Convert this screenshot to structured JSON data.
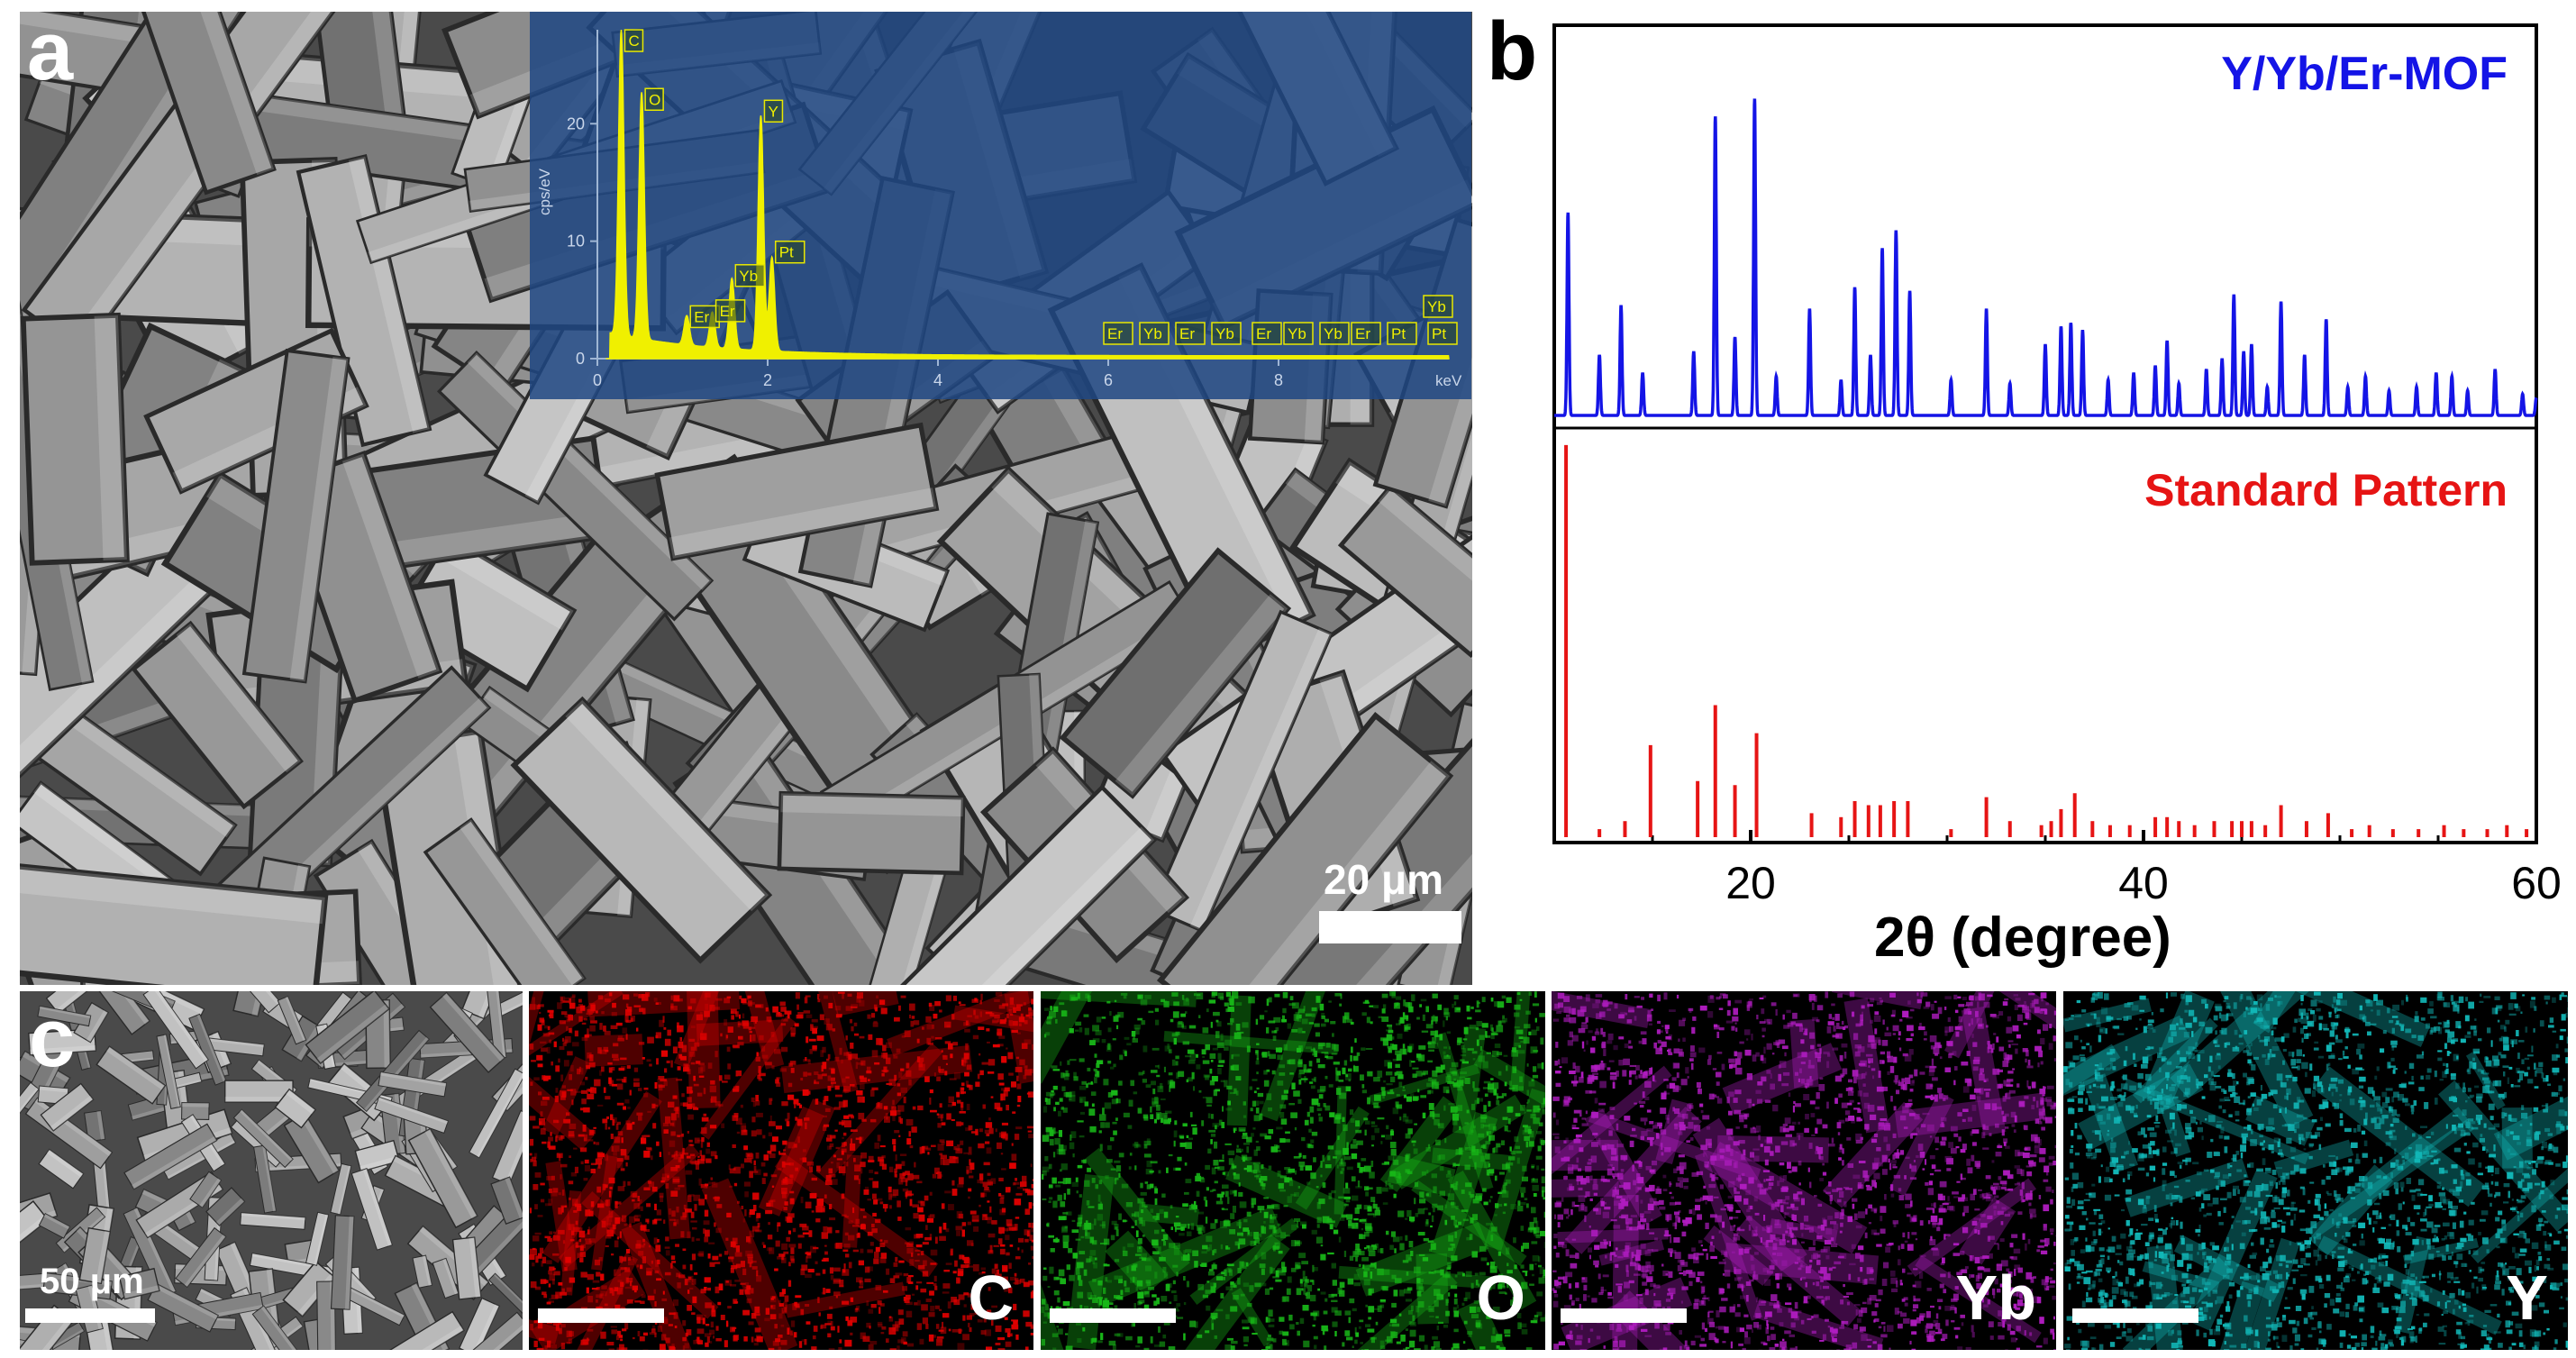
{
  "panel_labels": {
    "a": "a",
    "b": "b",
    "c": "c"
  },
  "sem_a": {
    "scale_bar": "20 μm"
  },
  "eds_inset": {
    "y_axis_label": "cps/eV",
    "y_ticks": [
      "0",
      "10",
      "20"
    ],
    "x_ticks": [
      "0",
      "2",
      "4",
      "6",
      "8"
    ],
    "x_unit": "keV",
    "trace_color": "#f0f000",
    "peaks": [
      {
        "kev": 0.28,
        "height": 26,
        "label": "C"
      },
      {
        "kev": 0.52,
        "height": 21,
        "label": "O"
      },
      {
        "kev": 1.92,
        "height": 20,
        "label": "Y"
      },
      {
        "kev": 1.58,
        "height": 6,
        "label": "Yb"
      },
      {
        "kev": 2.05,
        "height": 8,
        "label": "Pt"
      },
      {
        "kev": 1.05,
        "height": 2.5,
        "label": "Er"
      },
      {
        "kev": 1.35,
        "height": 3,
        "label": "Er"
      }
    ],
    "right_labels": [
      "Er",
      "Yb",
      "Er",
      "Yb",
      "Er",
      "Yb",
      "Yb",
      "Er",
      "Pt",
      "Yb",
      "Pt"
    ]
  },
  "chart_data": {
    "type": "line",
    "xlabel": "2θ (degree)",
    "x_ticks": [
      20,
      40,
      60
    ],
    "xlim": [
      10,
      60
    ],
    "series": [
      {
        "name": "Y/Yb/Er-MOF",
        "color": "#1414e6",
        "peaks": [
          [
            10.7,
            0.57
          ],
          [
            12.3,
            0.17
          ],
          [
            13.4,
            0.31
          ],
          [
            14.5,
            0.12
          ],
          [
            17.1,
            0.18
          ],
          [
            18.2,
            0.84
          ],
          [
            19.2,
            0.22
          ],
          [
            20.2,
            0.89
          ],
          [
            21.3,
            0.11
          ],
          [
            23.0,
            0.3
          ],
          [
            24.6,
            0.1
          ],
          [
            25.3,
            0.36
          ],
          [
            26.1,
            0.17
          ],
          [
            26.7,
            0.47
          ],
          [
            27.4,
            0.52
          ],
          [
            28.1,
            0.35
          ],
          [
            30.2,
            0.1
          ],
          [
            32.0,
            0.3
          ],
          [
            33.2,
            0.09
          ],
          [
            35.0,
            0.2
          ],
          [
            35.8,
            0.25
          ],
          [
            36.3,
            0.26
          ],
          [
            36.9,
            0.24
          ],
          [
            38.2,
            0.1
          ],
          [
            39.5,
            0.12
          ],
          [
            40.6,
            0.14
          ],
          [
            41.2,
            0.21
          ],
          [
            41.8,
            0.09
          ],
          [
            43.2,
            0.13
          ],
          [
            44.0,
            0.16
          ],
          [
            44.6,
            0.34
          ],
          [
            45.1,
            0.18
          ],
          [
            45.5,
            0.2
          ],
          [
            46.3,
            0.08
          ],
          [
            47.0,
            0.32
          ],
          [
            48.2,
            0.17
          ],
          [
            49.3,
            0.27
          ],
          [
            50.4,
            0.08
          ],
          [
            51.3,
            0.11
          ],
          [
            52.5,
            0.07
          ],
          [
            53.9,
            0.08
          ],
          [
            54.9,
            0.12
          ],
          [
            55.7,
            0.11
          ],
          [
            56.5,
            0.07
          ],
          [
            57.9,
            0.13
          ],
          [
            59.3,
            0.06
          ],
          [
            60.0,
            0.05
          ]
        ]
      },
      {
        "name": "Standard Pattern",
        "color": "#e61414",
        "peaks": [
          [
            10.6,
            0.98
          ],
          [
            12.3,
            0.02
          ],
          [
            13.6,
            0.04
          ],
          [
            14.9,
            0.23
          ],
          [
            17.3,
            0.14
          ],
          [
            18.2,
            0.33
          ],
          [
            19.2,
            0.13
          ],
          [
            20.3,
            0.26
          ],
          [
            23.1,
            0.06
          ],
          [
            24.6,
            0.05
          ],
          [
            25.3,
            0.09
          ],
          [
            26.0,
            0.08
          ],
          [
            26.6,
            0.08
          ],
          [
            27.3,
            0.09
          ],
          [
            28.0,
            0.09
          ],
          [
            30.2,
            0.02
          ],
          [
            32.0,
            0.1
          ],
          [
            33.2,
            0.04
          ],
          [
            34.8,
            0.03
          ],
          [
            35.3,
            0.04
          ],
          [
            35.8,
            0.07
          ],
          [
            36.5,
            0.11
          ],
          [
            37.4,
            0.04
          ],
          [
            38.3,
            0.03
          ],
          [
            39.3,
            0.03
          ],
          [
            40.6,
            0.05
          ],
          [
            41.2,
            0.05
          ],
          [
            41.8,
            0.04
          ],
          [
            42.6,
            0.03
          ],
          [
            43.6,
            0.04
          ],
          [
            44.5,
            0.04
          ],
          [
            45.0,
            0.04
          ],
          [
            45.5,
            0.04
          ],
          [
            46.2,
            0.03
          ],
          [
            47.0,
            0.08
          ],
          [
            48.3,
            0.04
          ],
          [
            49.4,
            0.06
          ],
          [
            50.6,
            0.02
          ],
          [
            51.5,
            0.03
          ],
          [
            52.7,
            0.02
          ],
          [
            54.0,
            0.02
          ],
          [
            55.3,
            0.03
          ],
          [
            56.3,
            0.02
          ],
          [
            57.5,
            0.02
          ],
          [
            58.5,
            0.03
          ],
          [
            59.5,
            0.02
          ]
        ]
      }
    ]
  },
  "maps": {
    "sem_scale_bar": "50 μm",
    "items": [
      {
        "element": "C",
        "color": "#e00000"
      },
      {
        "element": "O",
        "color": "#18b818"
      },
      {
        "element": "Yb",
        "color": "#b01cc0"
      },
      {
        "element": "Y",
        "color": "#12b8b8"
      }
    ]
  }
}
